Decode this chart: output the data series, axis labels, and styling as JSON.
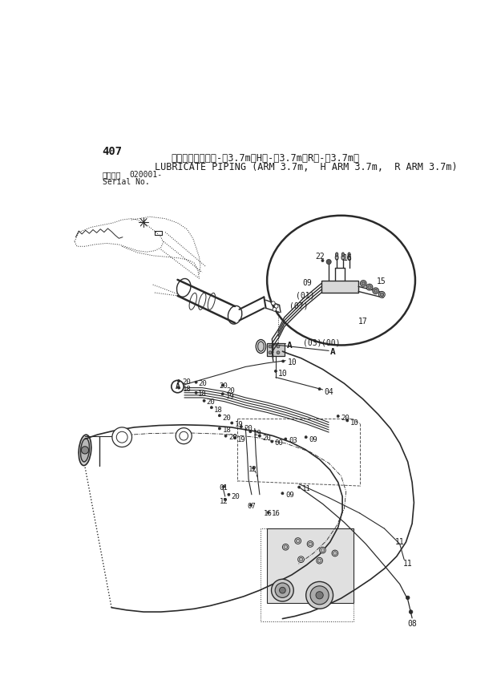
{
  "bg_color": "#ffffff",
  "text_color": "#1a1a1a",
  "line_color": "#2a2a2a",
  "fig_width": 6.2,
  "fig_height": 8.73,
  "dpi": 100,
  "title_number": "407",
  "header_jp": "集中給脂配管（ア-ヤ3.7m，Hア-ヤ3.7m，Rア-ヤ3.7m）",
  "header_en": "LUBRICATE PIPING (ARM 3.7m,  H ARM 3.7m,  R ARM 3.7m)",
  "serial_label": "適用号機",
  "serial_no": "Serial No.",
  "serial_val": "020001-"
}
